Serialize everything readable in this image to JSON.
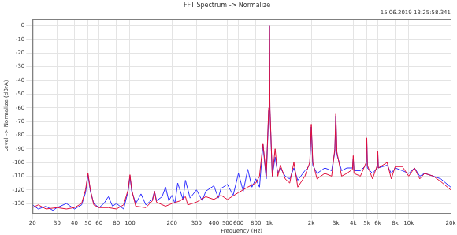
{
  "chart_data": {
    "type": "line",
    "title": "FFT Spectrum -> Normalize",
    "subtitle": "15.06.2019 13:25:58.341",
    "x_label": "Frequency (Hz)",
    "y_label": "Level -> Normalize (dBrA)",
    "log": "x",
    "grid": true,
    "xlim": [
      20,
      20000
    ],
    "xticks": [
      20,
      30,
      40,
      50,
      60,
      80,
      100,
      200,
      300,
      400,
      500,
      600,
      800,
      {
        "value": 1000,
        "label": "1k"
      },
      {
        "value": 2000,
        "label": "2k"
      },
      {
        "value": 3000,
        "label": "3k"
      },
      {
        "value": 4000,
        "label": "4k"
      },
      {
        "value": 5000,
        "label": "5k"
      },
      {
        "value": 6000,
        "label": "6k"
      },
      {
        "value": 8000,
        "label": "8k"
      },
      {
        "value": 10000,
        "label": "10k"
      },
      {
        "value": 20000,
        "label": "20k"
      }
    ],
    "ylim": [
      -137,
      5
    ],
    "yticks": [
      0,
      -10,
      -20,
      -30,
      -40,
      -50,
      -60,
      -70,
      -80,
      -90,
      -100,
      -110,
      -120,
      -130
    ],
    "series": [
      {
        "color": "#3030ff",
        "x": [
          20,
          22,
          25,
          28,
          30,
          35,
          40,
          45,
          48,
          50,
          52,
          55,
          60,
          65,
          70,
          75,
          80,
          90,
          97,
          100,
          103,
          110,
          120,
          130,
          145,
          150,
          155,
          170,
          180,
          190,
          200,
          210,
          220,
          240,
          250,
          270,
          300,
          330,
          350,
          400,
          430,
          450,
          500,
          550,
          600,
          650,
          700,
          750,
          800,
          850,
          900,
          950,
          990,
          1000,
          1010,
          1050,
          1100,
          1150,
          1200,
          1300,
          1400,
          1500,
          1600,
          1800,
          1950,
          2000,
          2050,
          2200,
          2500,
          2800,
          2950,
          3000,
          3050,
          3300,
          3600,
          3950,
          4000,
          4050,
          4500,
          4950,
          5000,
          5050,
          5500,
          5950,
          6000,
          6050,
          7000,
          7500,
          8000,
          9000,
          10000,
          11000,
          12000,
          13000,
          15000,
          17000,
          20000
        ],
        "values": [
          -131,
          -134,
          -132,
          -135,
          -133,
          -130,
          -134,
          -131,
          -122,
          -109,
          -121,
          -130,
          -133,
          -130,
          -125,
          -132,
          -130,
          -134,
          -121,
          -110,
          -121,
          -130,
          -123,
          -131,
          -127,
          -121,
          -128,
          -125,
          -118,
          -128,
          -124,
          -130,
          -115,
          -127,
          -113,
          -126,
          -120,
          -128,
          -121,
          -117,
          -126,
          -119,
          -116,
          -124,
          -108,
          -121,
          -105,
          -118,
          -112,
          -118,
          -87,
          -112,
          -62,
          0,
          -62,
          -110,
          -96,
          -108,
          -104,
          -110,
          -112,
          -104,
          -113,
          -106,
          -102,
          -74,
          -102,
          -108,
          -104,
          -106,
          -92,
          -66,
          -94,
          -106,
          -104,
          -104,
          -97,
          -106,
          -106,
          -102,
          -84,
          -104,
          -108,
          -104,
          -94,
          -104,
          -102,
          -108,
          -104,
          -106,
          -108,
          -104,
          -110,
          -108,
          -110,
          -112,
          -118
        ]
      },
      {
        "color": "#e0103c",
        "x": [
          20,
          22,
          25,
          30,
          35,
          40,
          45,
          48,
          50,
          52,
          55,
          60,
          70,
          80,
          90,
          97,
          100,
          103,
          110,
          130,
          145,
          150,
          155,
          180,
          200,
          230,
          250,
          260,
          300,
          350,
          400,
          450,
          500,
          600,
          700,
          800,
          850,
          900,
          950,
          990,
          1000,
          1010,
          1050,
          1100,
          1150,
          1200,
          1300,
          1400,
          1500,
          1600,
          1800,
          1950,
          2000,
          2050,
          2200,
          2500,
          2800,
          2950,
          3000,
          3050,
          3300,
          3600,
          3950,
          4000,
          4050,
          4500,
          4950,
          5000,
          5050,
          5500,
          5950,
          6000,
          6050,
          7000,
          7500,
          8000,
          9000,
          10000,
          11000,
          12000,
          13000,
          15000,
          17000,
          20000
        ],
        "values": [
          -133,
          -131,
          -134,
          -133,
          -134,
          -133,
          -130,
          -120,
          -108,
          -120,
          -131,
          -133,
          -133,
          -134,
          -131,
          -120,
          -109,
          -120,
          -132,
          -133,
          -128,
          -121,
          -129,
          -132,
          -130,
          -128,
          -125,
          -131,
          -129,
          -125,
          -127,
          -124,
          -127,
          -122,
          -118,
          -115,
          -110,
          -86,
          -110,
          -60,
          0,
          -60,
          -110,
          -90,
          -110,
          -102,
          -112,
          -115,
          -100,
          -118,
          -110,
          -100,
          -72,
          -100,
          -112,
          -108,
          -110,
          -90,
          -64,
          -92,
          -110,
          -108,
          -105,
          -95,
          -108,
          -110,
          -100,
          -82,
          -102,
          -112,
          -102,
          -92,
          -104,
          -100,
          -112,
          -103,
          -103,
          -110,
          -104,
          -112,
          -108,
          -110,
          -114,
          -120
        ]
      }
    ]
  }
}
